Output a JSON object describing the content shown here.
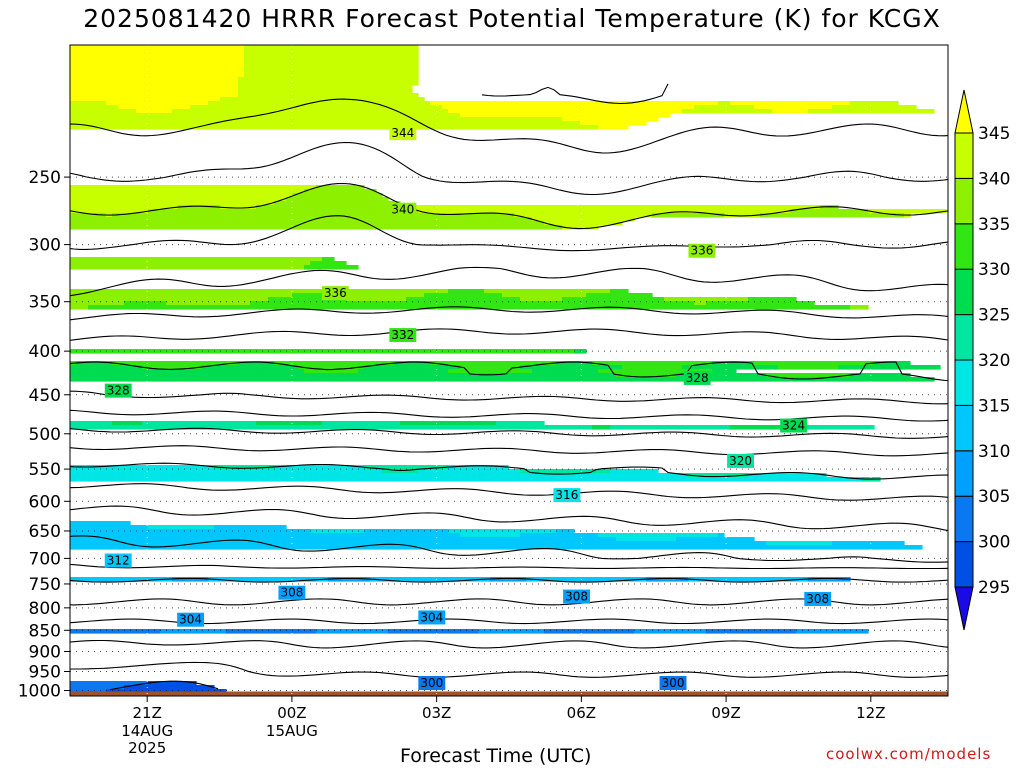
{
  "chart_data": {
    "type": "heatmap",
    "title": "2025081420 HRRR Forecast Potential Temperature (K) for KCGX",
    "xlabel": "Forecast Time (UTC)",
    "ylabel": "",
    "credit": "coolwx.com/models",
    "y_axis": {
      "scale": "log-pressure",
      "range": [
        1015,
        175
      ],
      "ticks": [
        250,
        300,
        350,
        400,
        450,
        500,
        550,
        600,
        650,
        700,
        750,
        800,
        850,
        900,
        950,
        1000
      ],
      "tick_labels": [
        "250",
        "300",
        "350",
        "400",
        "450",
        "500",
        "550",
        "600",
        "650",
        "700",
        "750",
        "800",
        "850",
        "900",
        "950",
        "1000"
      ]
    },
    "x_axis": {
      "range_hours_from_2025081420": [
        -0.6,
        17.6
      ],
      "ticks": [
        {
          "hour": 1,
          "label": "21Z",
          "sub": [
            "14AUG",
            "2025"
          ]
        },
        {
          "hour": 4,
          "label": "00Z",
          "sub": [
            "15AUG"
          ]
        },
        {
          "hour": 7,
          "label": "03Z",
          "sub": []
        },
        {
          "hour": 10,
          "label": "06Z",
          "sub": []
        },
        {
          "hour": 13,
          "label": "09Z",
          "sub": []
        },
        {
          "hour": 16,
          "label": "12Z",
          "sub": []
        }
      ]
    },
    "grid": true,
    "color_levels": [
      295,
      300,
      305,
      310,
      315,
      320,
      325,
      330,
      335,
      340,
      345
    ],
    "colorbar_labels": [
      "295",
      "300",
      "305",
      "310",
      "315",
      "320",
      "325",
      "330",
      "335",
      "340",
      "345"
    ],
    "band_colors": [
      "#1a0ae6",
      "#0050e6",
      "#0a78f0",
      "#00a0ff",
      "#00c8ff",
      "#00e6e6",
      "#00e6a0",
      "#00dc50",
      "#32e614",
      "#8cf000",
      "#c8ff00",
      "#ffff00"
    ],
    "ground_color": "#a0522d",
    "contour_levels": [
      300,
      302,
      304,
      306,
      308,
      310,
      312,
      314,
      316,
      318,
      320,
      322,
      324,
      326,
      328,
      330,
      332,
      334,
      336,
      338,
      340,
      342,
      344,
      346
    ],
    "contour_pressure_levels": [
      1000,
      975,
      950,
      925,
      900,
      875,
      850,
      825,
      800,
      775,
      750,
      725,
      700,
      675,
      650,
      600,
      550,
      500,
      450,
      400,
      350,
      300,
      250,
      200
    ],
    "contour_times": [
      -0.6,
      1,
      4,
      7,
      10,
      13,
      16,
      17.6
    ],
    "contour_labels": [
      {
        "level": 344,
        "hour": 6.3,
        "pressure": 222,
        "text": "344"
      },
      {
        "level": 340,
        "hour": 6.3,
        "pressure": 273,
        "text": "340"
      },
      {
        "level": 336,
        "hour": 12.5,
        "pressure": 305,
        "text": "336"
      },
      {
        "level": 336,
        "hour": 4.9,
        "pressure": 342,
        "text": "336"
      },
      {
        "level": 332,
        "hour": 6.3,
        "pressure": 383,
        "text": "332"
      },
      {
        "level": 328,
        "hour": 0.4,
        "pressure": 445,
        "text": "328"
      },
      {
        "level": 328,
        "hour": 12.4,
        "pressure": 430,
        "text": "328"
      },
      {
        "level": 324,
        "hour": 14.4,
        "pressure": 489,
        "text": "324"
      },
      {
        "level": 320,
        "hour": 13.3,
        "pressure": 538,
        "text": "320"
      },
      {
        "level": 316,
        "hour": 9.7,
        "pressure": 590,
        "text": "316"
      },
      {
        "level": 312,
        "hour": 0.4,
        "pressure": 704,
        "text": "312"
      },
      {
        "level": 308,
        "hour": 4,
        "pressure": 768,
        "text": "308"
      },
      {
        "level": 308,
        "hour": 9.9,
        "pressure": 776,
        "text": "308"
      },
      {
        "level": 308,
        "hour": 14.9,
        "pressure": 781,
        "text": "308"
      },
      {
        "level": 304,
        "hour": 1.9,
        "pressure": 826,
        "text": "304"
      },
      {
        "level": 304,
        "hour": 6.9,
        "pressure": 821,
        "text": "304"
      },
      {
        "level": 300,
        "hour": 6.9,
        "pressure": 980,
        "text": "300"
      },
      {
        "level": 300,
        "hour": 11.9,
        "pressure": 980,
        "text": "300"
      }
    ]
  }
}
